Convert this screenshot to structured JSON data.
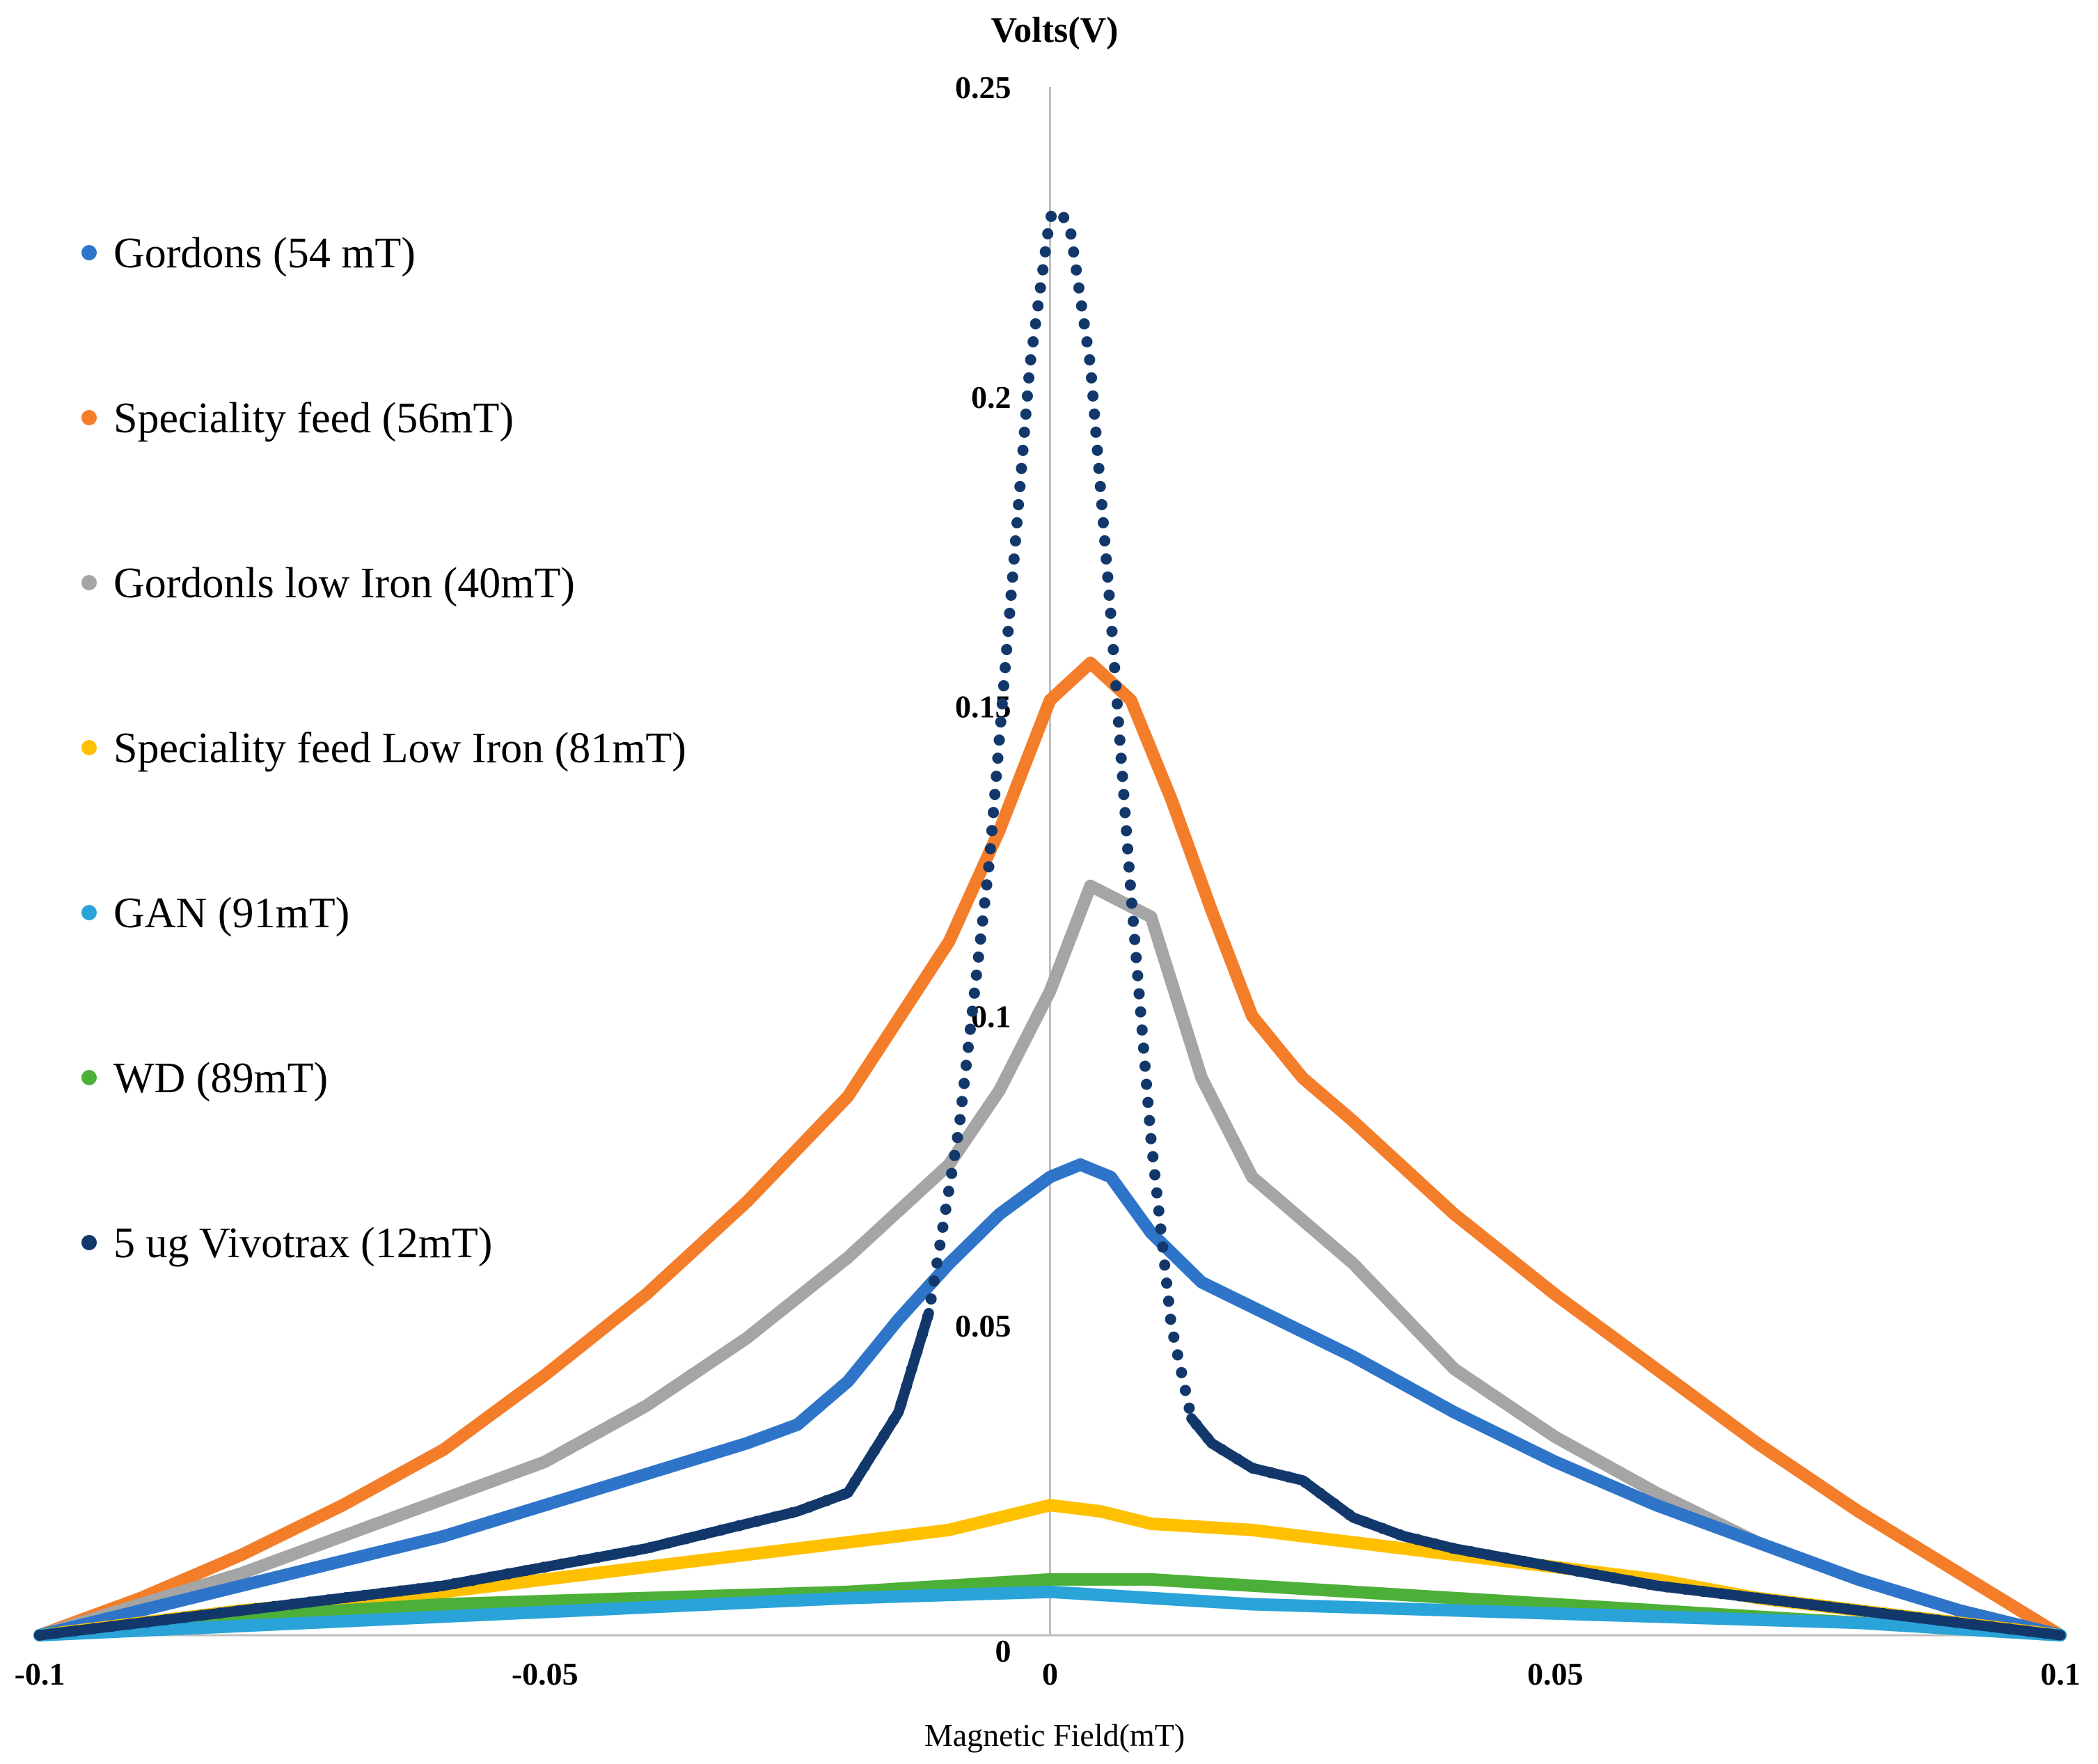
{
  "chart_data": {
    "type": "line",
    "title": "",
    "xlabel": "Magnetic  Field(mT)",
    "ylabel": "Volts(V)",
    "xlim": [
      -0.1,
      0.1
    ],
    "ylim": [
      0,
      0.25
    ],
    "x_ticks": [
      -0.1,
      -0.05,
      0,
      0.05,
      0.1
    ],
    "x_tick_labels": [
      "-0.1",
      "-0.05",
      "0",
      "0.05",
      "0.1"
    ],
    "y_ticks": [
      0,
      0.05,
      0.1,
      0.15,
      0.2,
      0.25
    ],
    "y_tick_labels": [
      "0",
      "0.05",
      "0.1",
      "0.15",
      "0.2",
      "0.25"
    ],
    "grid": false,
    "legend_position": "left",
    "series": [
      {
        "name": "Gordons (54 mT)",
        "color": "#2E75C9",
        "style": "line",
        "x": [
          -0.1,
          -0.09,
          -0.08,
          -0.07,
          -0.06,
          -0.05,
          -0.04,
          -0.03,
          -0.025,
          -0.02,
          -0.015,
          -0.01,
          -0.005,
          0,
          0.003,
          0.006,
          0.01,
          0.015,
          0.02,
          0.03,
          0.04,
          0.05,
          0.06,
          0.07,
          0.08,
          0.09,
          0.1
        ],
        "y": [
          0,
          0.004,
          0.008,
          0.012,
          0.016,
          0.021,
          0.026,
          0.031,
          0.034,
          0.041,
          0.051,
          0.06,
          0.068,
          0.074,
          0.076,
          0.074,
          0.065,
          0.057,
          0.053,
          0.045,
          0.036,
          0.028,
          0.021,
          0.015,
          0.009,
          0.004,
          0
        ]
      },
      {
        "name": "Speciality feed (56mT)",
        "color": "#F47D2A",
        "style": "line",
        "x": [
          -0.1,
          -0.09,
          -0.08,
          -0.07,
          -0.06,
          -0.05,
          -0.04,
          -0.03,
          -0.02,
          -0.01,
          -0.005,
          0,
          0.004,
          0.008,
          0.012,
          0.016,
          0.02,
          0.025,
          0.03,
          0.04,
          0.05,
          0.06,
          0.07,
          0.08,
          0.09,
          0.1
        ],
        "y": [
          0,
          0.006,
          0.013,
          0.021,
          0.03,
          0.042,
          0.055,
          0.07,
          0.087,
          0.112,
          0.13,
          0.151,
          0.157,
          0.151,
          0.135,
          0.117,
          0.1,
          0.09,
          0.083,
          0.068,
          0.055,
          0.043,
          0.031,
          0.02,
          0.01,
          0
        ]
      },
      {
        "name": "Gordonls low Iron (40mT)",
        "color": "#A5A5A5",
        "style": "line",
        "x": [
          -0.1,
          -0.09,
          -0.08,
          -0.07,
          -0.06,
          -0.05,
          -0.04,
          -0.03,
          -0.02,
          -0.01,
          -0.005,
          0,
          0.004,
          0.01,
          0.015,
          0.02,
          0.03,
          0.04,
          0.05,
          0.06,
          0.07,
          0.08,
          0.09,
          0.1
        ],
        "y": [
          0,
          0.005,
          0.01,
          0.016,
          0.022,
          0.028,
          0.037,
          0.048,
          0.061,
          0.076,
          0.088,
          0.104,
          0.121,
          0.116,
          0.09,
          0.074,
          0.06,
          0.043,
          0.032,
          0.023,
          0.015,
          0.009,
          0.004,
          0
        ]
      },
      {
        "name": "Speciality feed Low Iron (81mT)",
        "color": "#FFC000",
        "style": "line",
        "x": [
          -0.1,
          -0.08,
          -0.06,
          -0.04,
          -0.02,
          -0.01,
          0,
          0.005,
          0.01,
          0.02,
          0.03,
          0.04,
          0.05,
          0.06,
          0.07,
          0.08,
          0.09,
          0.1
        ],
        "y": [
          0,
          0.004,
          0.007,
          0.011,
          0.015,
          0.017,
          0.021,
          0.02,
          0.018,
          0.017,
          0.015,
          0.013,
          0.011,
          0.009,
          0.006,
          0.004,
          0.002,
          0
        ]
      },
      {
        "name": "GAN (91mT)",
        "color": "#29A3D8",
        "style": "line",
        "x": [
          -0.1,
          -0.06,
          -0.02,
          0,
          0.01,
          0.02,
          0.04,
          0.06,
          0.08,
          0.1
        ],
        "y": [
          0,
          0.003,
          0.006,
          0.007,
          0.006,
          0.005,
          0.004,
          0.003,
          0.002,
          0
        ]
      },
      {
        "name": "WD (89mT)",
        "color": "#4CAF37",
        "style": "line",
        "x": [
          -0.1,
          -0.08,
          -0.06,
          -0.04,
          -0.02,
          -0.01,
          0,
          0.01,
          0.02,
          0.03,
          0.04,
          0.05,
          0.06,
          0.07,
          0.08,
          0.09,
          0.1
        ],
        "y": [
          0,
          0.003,
          0.005,
          0.006,
          0.007,
          0.008,
          0.009,
          0.009,
          0.008,
          0.007,
          0.006,
          0.005,
          0.004,
          0.003,
          0.002,
          0.001,
          0
        ]
      },
      {
        "name": "5 ug Vivotrax (12mT)",
        "color": "#12386B",
        "style": "dotted",
        "x": [
          -0.1,
          -0.09,
          -0.08,
          -0.07,
          -0.06,
          -0.05,
          -0.04,
          -0.03,
          -0.025,
          -0.02,
          -0.015,
          -0.012,
          -0.009,
          -0.006,
          -0.004,
          -0.002,
          0,
          0.001,
          0.002,
          0.004,
          0.006,
          0.008,
          0.01,
          0.012,
          0.014,
          0.016,
          0.02,
          0.025,
          0.03,
          0.035,
          0.04,
          0.05,
          0.06,
          0.07,
          0.08,
          0.09,
          0.1
        ],
        "y": [
          0,
          0.002,
          0.004,
          0.006,
          0.008,
          0.011,
          0.014,
          0.018,
          0.02,
          0.023,
          0.036,
          0.052,
          0.082,
          0.125,
          0.165,
          0.205,
          0.229,
          0.23,
          0.227,
          0.205,
          0.165,
          0.12,
          0.08,
          0.05,
          0.035,
          0.031,
          0.027,
          0.025,
          0.019,
          0.016,
          0.014,
          0.011,
          0.008,
          0.006,
          0.004,
          0.002,
          0
        ]
      }
    ]
  }
}
